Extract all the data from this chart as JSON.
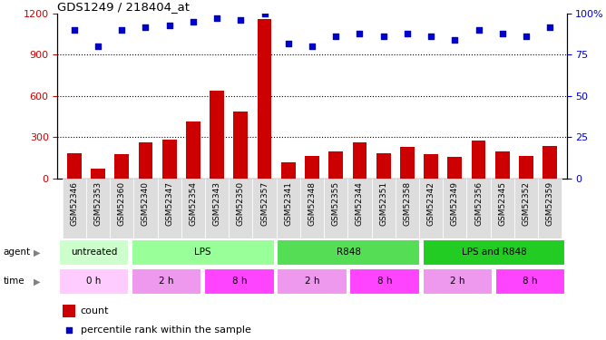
{
  "title": "GDS1249 / 218404_at",
  "samples": [
    "GSM52346",
    "GSM52353",
    "GSM52360",
    "GSM52340",
    "GSM52347",
    "GSM52354",
    "GSM52343",
    "GSM52350",
    "GSM52357",
    "GSM52341",
    "GSM52348",
    "GSM52355",
    "GSM52344",
    "GSM52351",
    "GSM52358",
    "GSM52342",
    "GSM52349",
    "GSM52356",
    "GSM52345",
    "GSM52352",
    "GSM52359"
  ],
  "counts": [
    185,
    70,
    175,
    265,
    285,
    415,
    640,
    490,
    1160,
    115,
    165,
    195,
    265,
    185,
    230,
    175,
    155,
    275,
    195,
    165,
    240
  ],
  "percentiles": [
    90,
    80,
    90,
    92,
    93,
    95,
    97,
    96,
    100,
    82,
    80,
    86,
    88,
    86,
    88,
    86,
    84,
    90,
    88,
    86,
    92
  ],
  "agent_groups": [
    {
      "label": "untreated",
      "start": 0,
      "end": 3,
      "color": "#ccffcc"
    },
    {
      "label": "LPS",
      "start": 3,
      "end": 9,
      "color": "#99ff99"
    },
    {
      "label": "R848",
      "start": 9,
      "end": 15,
      "color": "#55dd55"
    },
    {
      "label": "LPS and R848",
      "start": 15,
      "end": 21,
      "color": "#22cc22"
    }
  ],
  "time_groups": [
    {
      "label": "0 h",
      "start": 0,
      "end": 3,
      "color": "#ffccff"
    },
    {
      "label": "2 h",
      "start": 3,
      "end": 6,
      "color": "#ee99ee"
    },
    {
      "label": "8 h",
      "start": 6,
      "end": 9,
      "color": "#ff44ff"
    },
    {
      "label": "2 h",
      "start": 9,
      "end": 12,
      "color": "#ee99ee"
    },
    {
      "label": "8 h",
      "start": 12,
      "end": 15,
      "color": "#ff44ff"
    },
    {
      "label": "2 h",
      "start": 15,
      "end": 18,
      "color": "#ee99ee"
    },
    {
      "label": "8 h",
      "start": 18,
      "end": 21,
      "color": "#ff44ff"
    }
  ],
  "bar_color": "#cc0000",
  "dot_color": "#0000cc",
  "left_axis_color": "#cc0000",
  "right_axis_color": "#0000cc",
  "ylim_left": [
    0,
    1200
  ],
  "ylim_right": [
    0,
    100
  ],
  "yticks_left": [
    0,
    300,
    600,
    900,
    1200
  ],
  "yticks_right": [
    0,
    25,
    50,
    75,
    100
  ],
  "background_color": "#ffffff",
  "grid_color": "#000000",
  "legend_count_label": "count",
  "legend_pct_label": "percentile rank within the sample"
}
